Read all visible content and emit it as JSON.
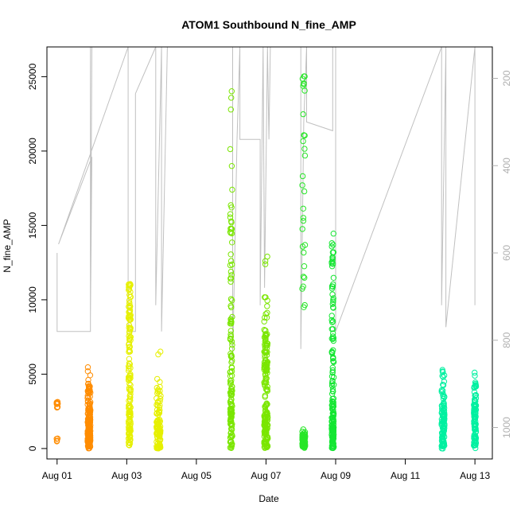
{
  "chart_data": {
    "type": "scatter",
    "title": "ATOM1 Southbound N_fine_AMP",
    "xlabel": "Date",
    "ylabel": "N_fine_AMP",
    "x_range": [
      "2013-07-31T17:00",
      "2013-08-13T12:00"
    ],
    "ylim": [
      -700,
      27000
    ],
    "x_ticks": [
      {
        "date": "2013-08-01",
        "label": "Aug 01"
      },
      {
        "date": "2013-08-03",
        "label": "Aug 03"
      },
      {
        "date": "2013-08-05",
        "label": "Aug 05"
      },
      {
        "date": "2013-08-07",
        "label": "Aug 07"
      },
      {
        "date": "2013-08-09",
        "label": "Aug 09"
      },
      {
        "date": "2013-08-11",
        "label": "Aug 11"
      },
      {
        "date": "2013-08-13",
        "label": "Aug 13"
      }
    ],
    "y_ticks": [
      0,
      5000,
      10000,
      15000,
      20000,
      25000
    ],
    "right_axis": {
      "reversed": true,
      "range": [
        128,
        1072
      ],
      "ticks": [
        200,
        400,
        600,
        800,
        1000
      ],
      "color": "#b0b0b0"
    },
    "scatter_clusters": [
      {
        "center": "2013-08-01T00:00",
        "spread_h": 1,
        "color": "#ff8c00",
        "bands": [
          [
            2700,
            3200,
            12
          ],
          [
            400,
            700,
            4
          ]
        ]
      },
      {
        "center": "2013-08-01T22:00",
        "spread_h": 2,
        "color": "#ff8c00",
        "bands": [
          [
            0,
            1500,
            90
          ],
          [
            1500,
            3000,
            50
          ],
          [
            3000,
            4200,
            25
          ],
          [
            4200,
            5700,
            6
          ]
        ]
      },
      {
        "center": "2013-08-03T02:00",
        "spread_h": 1.5,
        "color": "#e6f000",
        "bands": [
          [
            200,
            3000,
            60
          ],
          [
            3000,
            6000,
            30
          ],
          [
            6000,
            9000,
            35
          ],
          [
            9000,
            11200,
            25
          ]
        ]
      },
      {
        "center": "2013-08-03T22:00",
        "spread_h": 3,
        "color": "#e6f000",
        "bands": [
          [
            0,
            2000,
            70
          ],
          [
            2000,
            4000,
            25
          ],
          [
            4000,
            7800,
            6
          ]
        ]
      },
      {
        "center": "2013-08-06T00:00",
        "spread_h": 1.5,
        "color": "#7ae600",
        "bands": [
          [
            0,
            4000,
            70
          ],
          [
            4000,
            9000,
            40
          ],
          [
            9000,
            15000,
            20
          ],
          [
            15000,
            24500,
            12
          ]
        ]
      },
      {
        "center": "2013-08-07T00:00",
        "spread_h": 2.5,
        "color": "#7ae600",
        "bands": [
          [
            0,
            2500,
            90
          ],
          [
            2500,
            6500,
            60
          ],
          [
            6500,
            8000,
            25
          ],
          [
            8000,
            13000,
            12
          ]
        ]
      },
      {
        "center": "2013-08-08T02:00",
        "spread_h": 2,
        "color": "#28e628",
        "bands": [
          [
            0,
            1000,
            60
          ],
          [
            1000,
            1400,
            4
          ],
          [
            9000,
            25500,
            30
          ]
        ]
      },
      {
        "center": "2013-08-08T22:00",
        "spread_h": 1.5,
        "color": "#14e632",
        "bands": [
          [
            0,
            2500,
            80
          ],
          [
            2500,
            6500,
            40
          ],
          [
            6500,
            14600,
            40
          ]
        ]
      },
      {
        "center": "2013-08-12T02:00",
        "spread_h": 2,
        "color": "#00f0a0",
        "bands": [
          [
            0,
            3000,
            80
          ],
          [
            3000,
            5400,
            20
          ]
        ]
      },
      {
        "center": "2013-08-13T00:00",
        "spread_h": 1.5,
        "color": "#00f0a0",
        "bands": [
          [
            0,
            3000,
            70
          ],
          [
            3000,
            5300,
            20
          ]
        ]
      }
    ],
    "overlay_line": {
      "color": "#c0c0c0",
      "axis": "right",
      "points": [
        [
          "2013-08-01T00:00",
          600
        ],
        [
          "2013-08-01T00:00",
          780
        ],
        [
          "2013-08-01T23:00",
          780
        ],
        [
          "2013-08-01T23:00",
          128
        ],
        [
          "2013-08-02T00:00",
          128
        ],
        [
          "2013-08-01T23:00",
          750
        ],
        [
          "2013-08-02T00:00",
          380
        ],
        [
          "2013-08-01T01:00",
          580
        ],
        [
          "2013-08-03T01:00",
          128
        ],
        [
          "2013-08-03T01:00",
          780
        ],
        [
          "2013-08-03T06:00",
          780
        ],
        [
          "2013-08-03T06:00",
          235
        ],
        [
          "2013-08-03T20:00",
          128
        ],
        [
          "2013-08-03T20:00",
          720
        ],
        [
          "2013-08-04T00:00",
          128
        ],
        [
          "2013-08-04T00:00",
          780
        ],
        [
          "2013-08-04T04:00",
          128
        ],
        [
          "2013-08-04T12:00",
          128
        ],
        [
          "2013-08-06T01:00",
          128
        ],
        [
          "2013-08-06T01:00",
          850
        ],
        [
          "2013-08-06T04:00",
          340
        ],
        [
          "2013-08-06T06:00",
          128
        ],
        [
          "2013-08-06T06:00",
          340
        ],
        [
          "2013-08-06T20:00",
          340
        ],
        [
          "2013-08-06T20:00",
          720
        ],
        [
          "2013-08-06T22:00",
          128
        ],
        [
          "2013-08-06T23:00",
          680
        ],
        [
          "2013-08-07T01:00",
          128
        ],
        [
          "2013-08-07T02:00",
          340
        ],
        [
          "2013-08-07T03:00",
          128
        ],
        [
          "2013-08-08T00:00",
          128
        ],
        [
          "2013-08-08T00:00",
          820
        ],
        [
          "2013-08-08T02:00",
          300
        ],
        [
          "2013-08-08T04:00",
          128
        ],
        [
          "2013-08-08T04:00",
          300
        ],
        [
          "2013-08-08T22:00",
          320
        ],
        [
          "2013-08-08T22:00",
          128
        ],
        [
          "2013-08-09T00:00",
          128
        ],
        [
          "2013-08-09T00:00",
          780
        ],
        [
          "2013-08-12T01:00",
          128
        ],
        [
          "2013-08-12T01:00",
          720
        ],
        [
          "2013-08-12T04:00",
          128
        ],
        [
          "2013-08-12T04:00",
          770
        ],
        [
          "2013-08-13T00:00",
          128
        ],
        [
          "2013-08-13T00:00",
          720
        ]
      ]
    },
    "legend": "none",
    "grid": false
  }
}
